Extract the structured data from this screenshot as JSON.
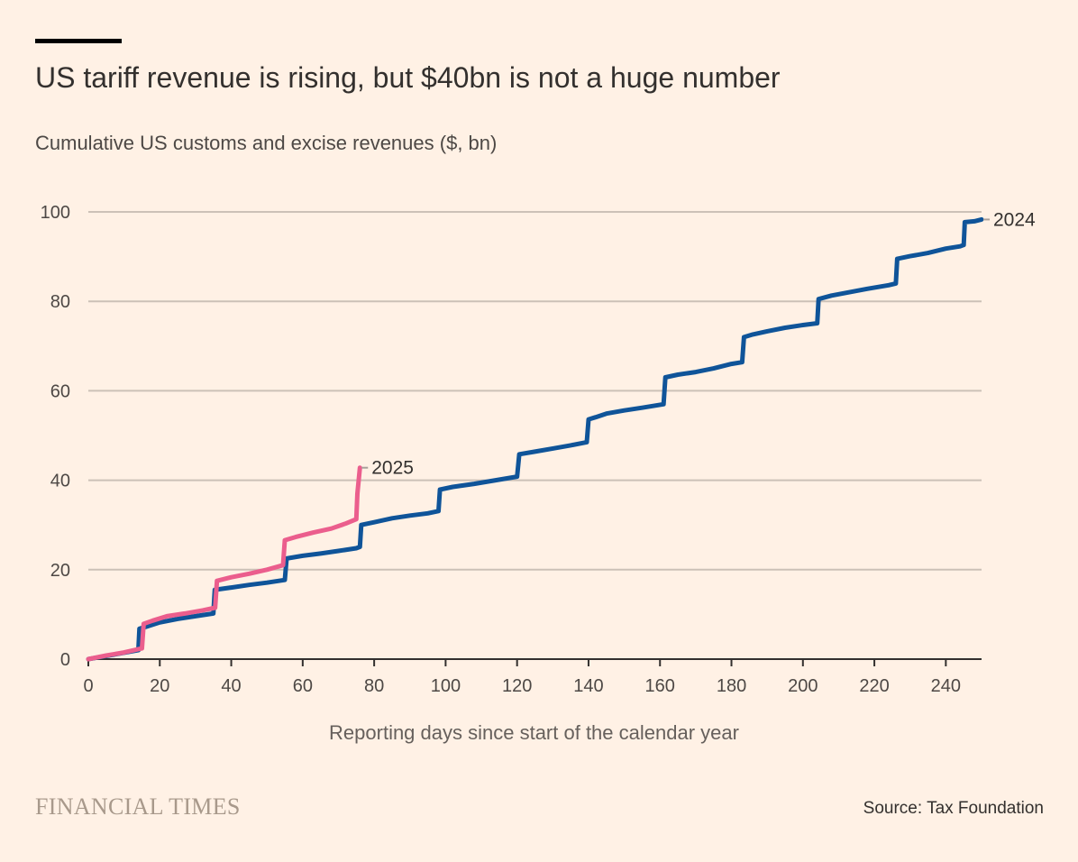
{
  "header": {
    "title": "US tariff revenue is rising, but $40bn is not a huge number",
    "subtitle": "Cumulative US customs and excise revenues ($, bn)"
  },
  "footer": {
    "logo_text": "FINANCIAL TIMES",
    "source": "Source: Tax Foundation"
  },
  "chart_data": {
    "type": "line",
    "title": "US tariff revenue is rising, but $40bn is not a huge number",
    "subtitle": "Cumulative US customs and excise revenues ($, bn)",
    "xlabel": "Reporting days since start of the calendar year",
    "ylabel": "",
    "xlim": [
      0,
      250
    ],
    "ylim": [
      0,
      100
    ],
    "x_ticks": [
      0,
      20,
      40,
      60,
      80,
      100,
      120,
      140,
      160,
      180,
      200,
      220,
      240
    ],
    "y_ticks": [
      0,
      20,
      40,
      60,
      80,
      100
    ],
    "grid": "horizontal",
    "legend": "direct labels at line ends",
    "series": [
      {
        "name": "2024",
        "color": "#0f5499",
        "label_position": "end",
        "x": [
          0,
          14,
          14.3,
          16,
          20,
          25,
          30,
          35,
          35.4,
          40,
          45,
          50,
          55,
          55.5,
          60,
          65,
          70,
          75,
          76,
          76.4,
          80,
          85,
          90,
          95,
          98,
          98.4,
          102,
          108,
          114,
          120,
          120.6,
          125,
          130,
          135,
          139.5,
          140,
          142,
          145,
          150,
          155,
          161,
          161.5,
          165,
          170,
          175,
          180,
          183,
          183.5,
          186,
          190,
          195,
          200,
          204,
          204.4,
          208,
          212,
          218,
          224,
          226,
          226.4,
          230,
          235,
          240,
          244,
          245,
          245.3,
          248,
          250
        ],
        "values": [
          0,
          2,
          6.8,
          7.2,
          8.2,
          9,
          9.6,
          10.2,
          15.5,
          16,
          16.6,
          17.1,
          17.7,
          22.5,
          23.1,
          23.6,
          24.2,
          24.8,
          25.1,
          30,
          30.6,
          31.5,
          32.1,
          32.6,
          33.1,
          37.9,
          38.5,
          39.2,
          40,
          40.8,
          45.8,
          46.4,
          47.1,
          47.8,
          48.5,
          53.6,
          54.1,
          54.9,
          55.6,
          56.2,
          57,
          63,
          63.6,
          64.2,
          65,
          66,
          66.4,
          72,
          72.6,
          73.3,
          74.1,
          74.7,
          75.1,
          80.5,
          81.3,
          81.9,
          82.8,
          83.6,
          84,
          89.5,
          90.1,
          90.8,
          91.8,
          92.3,
          92.6,
          97.7,
          97.9,
          98.3
        ]
      },
      {
        "name": "2025",
        "color": "#eb5e8d",
        "label_position": "end",
        "x": [
          0,
          5,
          10,
          15,
          15.5,
          18,
          22,
          27,
          32,
          35.5,
          36,
          40,
          45,
          50,
          54.5,
          55,
          58,
          63,
          68,
          72,
          75,
          75.3,
          76
        ],
        "values": [
          0,
          0.8,
          1.5,
          2.4,
          7.9,
          8.6,
          9.6,
          10.2,
          10.9,
          11.5,
          17.5,
          18.3,
          19.1,
          20,
          21,
          26.6,
          27.3,
          28.3,
          29.2,
          30.3,
          31.3,
          37,
          42.8
        ]
      }
    ]
  }
}
